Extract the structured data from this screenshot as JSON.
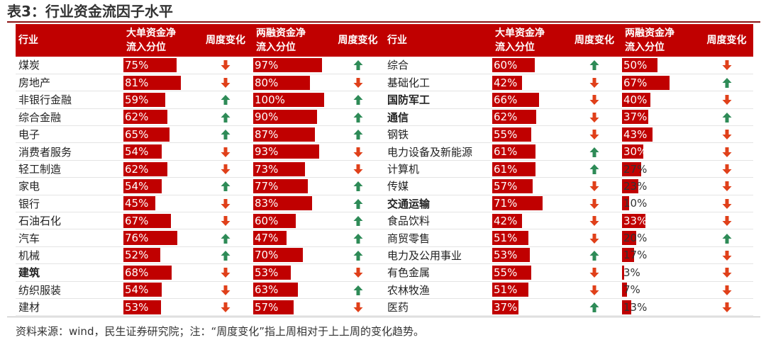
{
  "title": "表3：行业资金流因子水平",
  "headers": {
    "industry": "行业",
    "big_order_l1": "大单资金净",
    "big_order_l2": "流入分位",
    "weekly_change": "周度变化",
    "margin_l1": "两融资金净",
    "margin_l2": "流入分位"
  },
  "colors": {
    "bar": "#c00000",
    "up": "#2e8b57",
    "down": "#e0401a"
  },
  "left_rows": [
    {
      "name": "煤炭",
      "bold": false,
      "big": 75,
      "big_text": "75%",
      "big_dir": "down",
      "margin": 97,
      "margin_text": "97%",
      "margin_dir": "up"
    },
    {
      "name": "房地产",
      "bold": false,
      "big": 81,
      "big_text": "81%",
      "big_dir": "down",
      "margin": 80,
      "margin_text": "80%",
      "margin_dir": "down"
    },
    {
      "name": "非银行金融",
      "bold": false,
      "big": 59,
      "big_text": "59%",
      "big_dir": "up",
      "margin": 100,
      "margin_text": "100%",
      "margin_dir": "up"
    },
    {
      "name": "综合金融",
      "bold": false,
      "big": 62,
      "big_text": "62%",
      "big_dir": "up",
      "margin": 90,
      "margin_text": "90%",
      "margin_dir": "up"
    },
    {
      "name": "电子",
      "bold": false,
      "big": 65,
      "big_text": "65%",
      "big_dir": "up",
      "margin": 87,
      "margin_text": "87%",
      "margin_dir": "up"
    },
    {
      "name": "消费者服务",
      "bold": false,
      "big": 54,
      "big_text": "54%",
      "big_dir": "down",
      "margin": 93,
      "margin_text": "93%",
      "margin_dir": "down"
    },
    {
      "name": "轻工制造",
      "bold": false,
      "big": 62,
      "big_text": "62%",
      "big_dir": "down",
      "margin": 73,
      "margin_text": "73%",
      "margin_dir": "down"
    },
    {
      "name": "家电",
      "bold": false,
      "big": 54,
      "big_text": "54%",
      "big_dir": "up",
      "margin": 77,
      "margin_text": "77%",
      "margin_dir": "up"
    },
    {
      "name": "银行",
      "bold": false,
      "big": 45,
      "big_text": "45%",
      "big_dir": "down",
      "margin": 83,
      "margin_text": "83%",
      "margin_dir": "up"
    },
    {
      "name": "石油石化",
      "bold": false,
      "big": 67,
      "big_text": "67%",
      "big_dir": "down",
      "margin": 60,
      "margin_text": "60%",
      "margin_dir": "up"
    },
    {
      "name": "汽车",
      "bold": false,
      "big": 76,
      "big_text": "76%",
      "big_dir": "up",
      "margin": 47,
      "margin_text": "47%",
      "margin_dir": "up"
    },
    {
      "name": "机械",
      "bold": false,
      "big": 52,
      "big_text": "52%",
      "big_dir": "up",
      "margin": 70,
      "margin_text": "70%",
      "margin_dir": "up"
    },
    {
      "name": "建筑",
      "bold": true,
      "big": 68,
      "big_text": "68%",
      "big_dir": "down",
      "margin": 53,
      "margin_text": "53%",
      "margin_dir": "down"
    },
    {
      "name": "纺织服装",
      "bold": false,
      "big": 54,
      "big_text": "54%",
      "big_dir": "down",
      "margin": 63,
      "margin_text": "63%",
      "margin_dir": "up"
    },
    {
      "name": "建材",
      "bold": false,
      "big": 53,
      "big_text": "53%",
      "big_dir": "down",
      "margin": 57,
      "margin_text": "57%",
      "margin_dir": "down"
    }
  ],
  "right_rows": [
    {
      "name": "综合",
      "bold": false,
      "big": 60,
      "big_text": "60%",
      "big_dir": "up",
      "margin": 50,
      "margin_text": "50%",
      "margin_dir": "down"
    },
    {
      "name": "基础化工",
      "bold": false,
      "big": 42,
      "big_text": "42%",
      "big_dir": "down",
      "margin": 67,
      "margin_text": "67%",
      "margin_dir": "up"
    },
    {
      "name": "国防军工",
      "bold": true,
      "big": 66,
      "big_text": "66%",
      "big_dir": "down",
      "margin": 40,
      "margin_text": "40%",
      "margin_dir": "down"
    },
    {
      "name": "通信",
      "bold": true,
      "big": 62,
      "big_text": "62%",
      "big_dir": "down",
      "margin": 37,
      "margin_text": "37%",
      "margin_dir": "up"
    },
    {
      "name": "钢铁",
      "bold": false,
      "big": 55,
      "big_text": "55%",
      "big_dir": "down",
      "margin": 43,
      "margin_text": "43%",
      "margin_dir": "down"
    },
    {
      "name": "电力设备及新能源",
      "bold": false,
      "big": 61,
      "big_text": "61%",
      "big_dir": "up",
      "margin": 30,
      "margin_text": "30%",
      "margin_dir": "down"
    },
    {
      "name": "计算机",
      "bold": false,
      "big": 61,
      "big_text": "61%",
      "big_dir": "up",
      "margin": 27,
      "margin_text": "27%",
      "margin_dir": "down"
    },
    {
      "name": "传媒",
      "bold": false,
      "big": 57,
      "big_text": "57%",
      "big_dir": "down",
      "margin": 23,
      "margin_text": "23%",
      "margin_dir": "down"
    },
    {
      "name": "交通运输",
      "bold": true,
      "big": 71,
      "big_text": "71%",
      "big_dir": "down",
      "margin": 10,
      "margin_text": "10%",
      "margin_dir": "down"
    },
    {
      "name": "食品饮料",
      "bold": false,
      "big": 42,
      "big_text": "42%",
      "big_dir": "down",
      "margin": 33,
      "margin_text": "33%",
      "margin_dir": "down"
    },
    {
      "name": "商贸零售",
      "bold": false,
      "big": 51,
      "big_text": "51%",
      "big_dir": "down",
      "margin": 20,
      "margin_text": "20%",
      "margin_dir": "up"
    },
    {
      "name": "电力及公用事业",
      "bold": false,
      "big": 53,
      "big_text": "53%",
      "big_dir": "up",
      "margin": 17,
      "margin_text": "17%",
      "margin_dir": "down"
    },
    {
      "name": "有色金属",
      "bold": false,
      "big": 55,
      "big_text": "55%",
      "big_dir": "down",
      "margin": 3,
      "margin_text": "3%",
      "margin_dir": "down"
    },
    {
      "name": "农林牧渔",
      "bold": false,
      "big": 51,
      "big_text": "51%",
      "big_dir": "down",
      "margin": 7,
      "margin_text": "7%",
      "margin_dir": "down"
    },
    {
      "name": "医药",
      "bold": false,
      "big": 37,
      "big_text": "37%",
      "big_dir": "up",
      "margin": 13,
      "margin_text": "13%",
      "margin_dir": "down"
    }
  ],
  "footnote": "资料来源：wind，民生证券研究院；注：“周度变化”指上周相对于上上周的变化趋势。"
}
